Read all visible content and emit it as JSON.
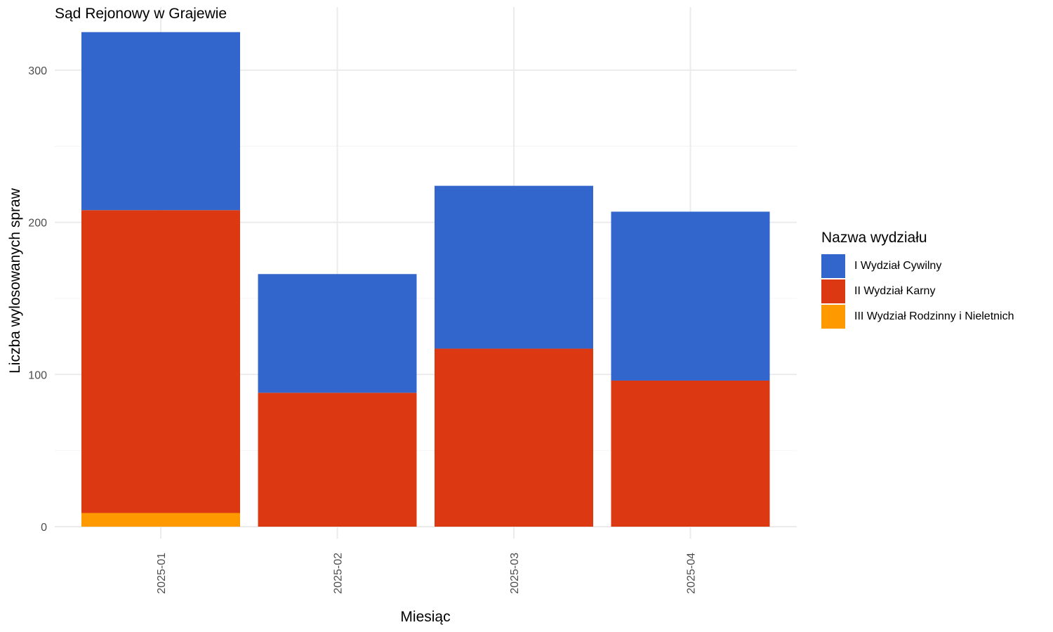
{
  "chart_data": {
    "type": "bar",
    "stacked": true,
    "title": "Sąd Rejonowy w Grajewie",
    "xlabel": "Miesiąc",
    "ylabel": "Liczba wylosowanych spraw",
    "categories": [
      "2025-01",
      "2025-02",
      "2025-03",
      "2025-04"
    ],
    "ylim": [
      0,
      330
    ],
    "yticks": [
      0,
      100,
      200,
      300
    ],
    "grid": true,
    "legend_title": "Nazwa wydziału",
    "legend_position": "right",
    "x_tick_rotation": "vertical",
    "series": [
      {
        "name": "I Wydział Cywilny",
        "color": "#3366CC",
        "values": [
          117,
          78,
          107,
          111
        ]
      },
      {
        "name": "II Wydział Karny",
        "color": "#DC3912",
        "values": [
          199,
          88,
          117,
          96
        ]
      },
      {
        "name": "III Wydział Rodzinny i Nieletnich",
        "color": "#FF9900",
        "values": [
          9,
          0,
          0,
          0
        ]
      }
    ]
  }
}
